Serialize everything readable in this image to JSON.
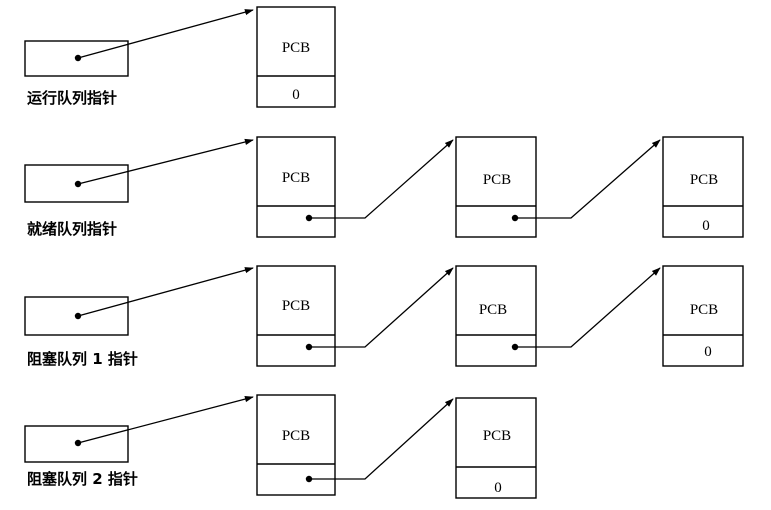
{
  "queues": [
    {
      "label": "运行队列指针",
      "pcbs": [
        {
          "title": "PCB",
          "next": "0"
        }
      ]
    },
    {
      "label": "就绪队列指针",
      "pcbs": [
        {
          "title": "PCB",
          "next": ""
        },
        {
          "title": "PCB",
          "next": ""
        },
        {
          "title": "PCB",
          "next": "0"
        }
      ]
    },
    {
      "label": "阻塞队列 1 指针",
      "pcbs": [
        {
          "title": "PCB",
          "next": ""
        },
        {
          "title": "PCB",
          "next": ""
        },
        {
          "title": "PCB",
          "next": "0"
        }
      ]
    },
    {
      "label": "阻塞队列 2 指针",
      "pcbs": [
        {
          "title": "PCB",
          "next": ""
        },
        {
          "title": "PCB",
          "next": "0"
        }
      ]
    }
  ]
}
